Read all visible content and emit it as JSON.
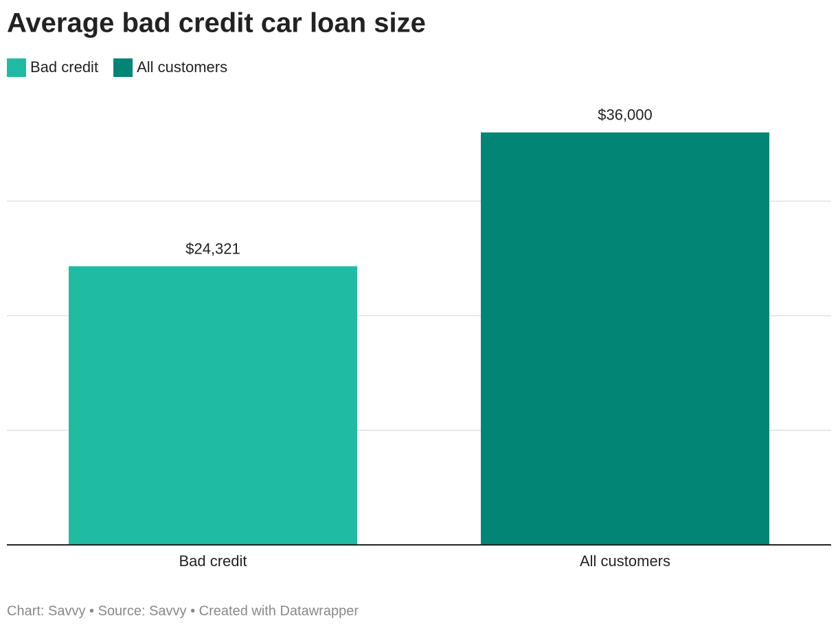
{
  "chart_data": {
    "type": "bar",
    "title": "Average bad credit car loan size",
    "categories": [
      "Bad credit",
      "All customers"
    ],
    "values": [
      24321,
      36000
    ],
    "value_labels": [
      "$24,321",
      "$36,000"
    ],
    "colors": [
      "#1fbba3",
      "#038575"
    ],
    "ylim": [
      0,
      40000
    ],
    "yticks": [
      0,
      10000,
      20000,
      30000
    ],
    "grid": true,
    "source": "Chart: Savvy • Source: Savvy • Created with Datawrapper"
  }
}
